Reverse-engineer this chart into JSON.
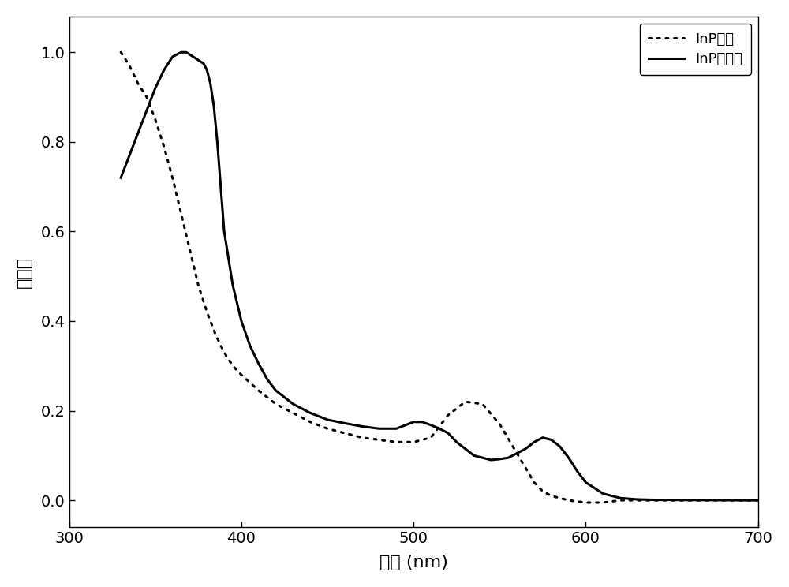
{
  "xlabel": "波长 (nm)",
  "ylabel": "吸光度",
  "xlim": [
    300,
    700
  ],
  "ylim": [
    -0.06,
    1.08
  ],
  "xticks": [
    300,
    400,
    500,
    600,
    700
  ],
  "yticks": [
    0.0,
    0.2,
    0.4,
    0.6,
    0.8,
    1.0
  ],
  "legend_labels": [
    "InP晶种",
    "InP量子点"
  ],
  "bg_color": "#ffffff",
  "line_color": "#000000",
  "dotted_x": [
    330,
    335,
    340,
    345,
    350,
    355,
    360,
    365,
    370,
    375,
    380,
    385,
    390,
    395,
    400,
    410,
    420,
    430,
    440,
    450,
    460,
    470,
    480,
    490,
    500,
    510,
    520,
    530,
    540,
    550,
    560,
    570,
    575,
    580,
    585,
    590,
    600,
    610,
    620,
    630,
    640,
    650,
    700
  ],
  "dotted_y": [
    1.0,
    0.97,
    0.93,
    0.9,
    0.85,
    0.79,
    0.72,
    0.64,
    0.56,
    0.48,
    0.42,
    0.37,
    0.33,
    0.3,
    0.28,
    0.245,
    0.215,
    0.195,
    0.175,
    0.16,
    0.15,
    0.14,
    0.135,
    0.13,
    0.13,
    0.14,
    0.19,
    0.22,
    0.215,
    0.17,
    0.105,
    0.04,
    0.02,
    0.01,
    0.005,
    0.0,
    -0.005,
    -0.005,
    0.0,
    0.0,
    0.0,
    0.0,
    0.0
  ],
  "solid_x": [
    330,
    340,
    350,
    355,
    360,
    365,
    368,
    370,
    372,
    374,
    376,
    378,
    380,
    382,
    384,
    386,
    388,
    390,
    395,
    400,
    405,
    410,
    415,
    420,
    430,
    440,
    450,
    460,
    470,
    480,
    490,
    500,
    505,
    510,
    515,
    520,
    525,
    530,
    535,
    540,
    545,
    550,
    555,
    560,
    565,
    570,
    575,
    580,
    585,
    590,
    595,
    600,
    610,
    620,
    630,
    640,
    700
  ],
  "solid_y": [
    0.72,
    0.82,
    0.92,
    0.96,
    0.99,
    1.0,
    1.0,
    0.995,
    0.99,
    0.985,
    0.98,
    0.975,
    0.96,
    0.93,
    0.88,
    0.8,
    0.7,
    0.6,
    0.48,
    0.4,
    0.345,
    0.305,
    0.27,
    0.245,
    0.215,
    0.195,
    0.18,
    0.172,
    0.165,
    0.16,
    0.16,
    0.175,
    0.175,
    0.168,
    0.16,
    0.15,
    0.13,
    0.115,
    0.1,
    0.095,
    0.09,
    0.092,
    0.095,
    0.105,
    0.115,
    0.13,
    0.14,
    0.135,
    0.12,
    0.095,
    0.065,
    0.04,
    0.015,
    0.005,
    0.002,
    0.001,
    0.0
  ]
}
